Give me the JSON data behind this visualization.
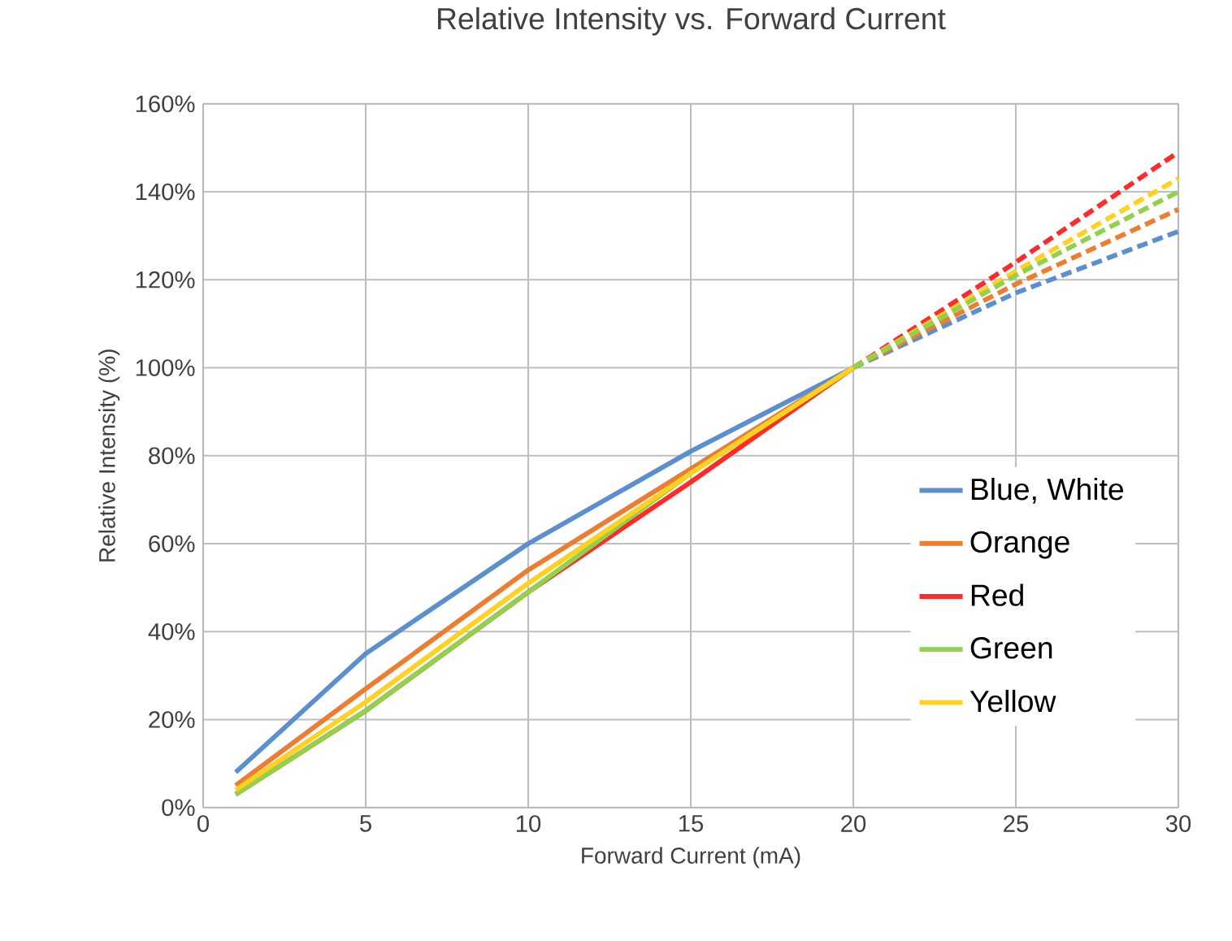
{
  "chart_data": {
    "type": "line",
    "title": "Relative Intensity vs. Forward Current",
    "xlabel": "Forward Current (mA)",
    "ylabel": "Relative Intensity (%)",
    "xlim": [
      0,
      30
    ],
    "ylim": [
      0,
      160
    ],
    "xticks": [
      0,
      5,
      10,
      15,
      20,
      25,
      30
    ],
    "yticks": [
      {
        "value": 0,
        "label": "0%"
      },
      {
        "value": 20,
        "label": "20%"
      },
      {
        "value": 40,
        "label": "40%"
      },
      {
        "value": 60,
        "label": "60%"
      },
      {
        "value": 80,
        "label": "80%"
      },
      {
        "value": 100,
        "label": "100%"
      },
      {
        "value": 120,
        "label": "120%"
      },
      {
        "value": 140,
        "label": "140%"
      },
      {
        "value": 160,
        "label": "160%"
      }
    ],
    "grid": true,
    "legend": "right",
    "marker": "none",
    "series": [
      {
        "name": "Blue, White",
        "color": "#5b8fd0",
        "line_style": "solid",
        "x": [
          1,
          5,
          10,
          15,
          20
        ],
        "values": [
          8,
          35,
          60,
          81,
          100
        ]
      },
      {
        "name": "Orange",
        "color": "#ed7d31",
        "line_style": "solid",
        "x": [
          1,
          5,
          10,
          15,
          20
        ],
        "values": [
          5,
          27,
          54,
          77,
          100
        ]
      },
      {
        "name": "Red",
        "color": "#ff2a2a",
        "line_style": "solid",
        "x": [
          1,
          5,
          10,
          15,
          20
        ],
        "values": [
          3,
          22,
          49,
          74,
          100
        ]
      },
      {
        "name": "Green",
        "color": "#92d050",
        "line_style": "solid",
        "x": [
          1,
          5,
          10,
          15,
          20
        ],
        "values": [
          3,
          22,
          49,
          76,
          100
        ]
      },
      {
        "name": "Yellow",
        "color": "#ffd21f",
        "line_style": "solid",
        "x": [
          1,
          5,
          10,
          15,
          20
        ],
        "values": [
          4,
          24,
          51,
          76,
          100
        ]
      },
      {
        "color": "#5b8fd0",
        "line_style": "dashed",
        "x": [
          20,
          25,
          30
        ],
        "values": [
          100,
          117,
          131
        ]
      },
      {
        "color": "#ed7d31",
        "line_style": "dashed",
        "x": [
          20,
          25,
          30
        ],
        "values": [
          100,
          119,
          136
        ]
      },
      {
        "color": "#ff2a2a",
        "line_style": "dashed",
        "x": [
          20,
          25,
          30
        ],
        "values": [
          100,
          124,
          149
        ]
      },
      {
        "color": "#ffd21f",
        "line_style": "dashed",
        "x": [
          20,
          25,
          30
        ],
        "values": [
          100,
          122,
          143
        ]
      },
      {
        "color": "#92d050",
        "line_style": "dashed",
        "x": [
          20,
          25,
          30
        ],
        "values": [
          100,
          121,
          140
        ]
      }
    ]
  }
}
